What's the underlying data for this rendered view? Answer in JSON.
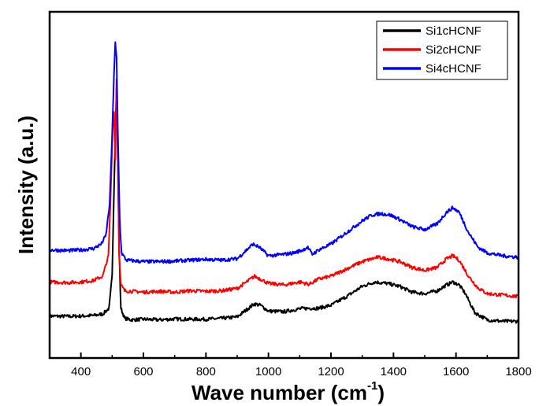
{
  "chart_data": {
    "type": "line",
    "title": "",
    "xlabel": "Wave number (cm",
    "xlabel_sup": "-1",
    "xlabel_close": ")",
    "ylabel": "Intensity (a.u.)",
    "xlim": [
      300,
      1800
    ],
    "x_ticks": [
      400,
      600,
      800,
      1000,
      1200,
      1400,
      1600,
      1800
    ],
    "y_ticks_labeled": false,
    "y_scale": "arbitrary units",
    "ylim": [
      0,
      1
    ],
    "grid": false,
    "legend_position": "top-right",
    "series": [
      {
        "name": "Si1cHCNF",
        "color": "#000000",
        "points": [
          [
            300,
            0.063
          ],
          [
            360,
            0.062
          ],
          [
            400,
            0.063
          ],
          [
            440,
            0.065
          ],
          [
            470,
            0.07
          ],
          [
            490,
            0.09
          ],
          [
            500,
            0.2
          ],
          [
            506,
            0.5
          ],
          [
            510,
            0.68
          ],
          [
            514,
            0.85
          ],
          [
            518,
            0.6
          ],
          [
            522,
            0.3
          ],
          [
            528,
            0.09
          ],
          [
            540,
            0.055
          ],
          [
            560,
            0.05
          ],
          [
            600,
            0.052
          ],
          [
            650,
            0.05
          ],
          [
            700,
            0.053
          ],
          [
            750,
            0.052
          ],
          [
            800,
            0.052
          ],
          [
            850,
            0.055
          ],
          [
            900,
            0.06
          ],
          [
            930,
            0.085
          ],
          [
            955,
            0.105
          ],
          [
            975,
            0.1
          ],
          [
            1000,
            0.08
          ],
          [
            1050,
            0.078
          ],
          [
            1100,
            0.088
          ],
          [
            1130,
            0.09
          ],
          [
            1160,
            0.09
          ],
          [
            1200,
            0.1
          ],
          [
            1250,
            0.13
          ],
          [
            1300,
            0.165
          ],
          [
            1340,
            0.18
          ],
          [
            1380,
            0.175
          ],
          [
            1420,
            0.165
          ],
          [
            1460,
            0.145
          ],
          [
            1500,
            0.14
          ],
          [
            1540,
            0.15
          ],
          [
            1570,
            0.17
          ],
          [
            1590,
            0.18
          ],
          [
            1610,
            0.17
          ],
          [
            1630,
            0.14
          ],
          [
            1660,
            0.075
          ],
          [
            1700,
            0.05
          ],
          [
            1750,
            0.045
          ],
          [
            1800,
            0.045
          ]
        ]
      },
      {
        "name": "Si2cHCNF",
        "color": "#ff0000",
        "points": [
          [
            300,
            0.18
          ],
          [
            360,
            0.178
          ],
          [
            400,
            0.18
          ],
          [
            440,
            0.185
          ],
          [
            470,
            0.2
          ],
          [
            488,
            0.27
          ],
          [
            496,
            0.5
          ],
          [
            502,
            0.72
          ],
          [
            506,
            0.77
          ],
          [
            510,
            0.6
          ],
          [
            514,
            0.88
          ],
          [
            518,
            0.63
          ],
          [
            522,
            0.28
          ],
          [
            528,
            0.17
          ],
          [
            540,
            0.15
          ],
          [
            600,
            0.145
          ],
          [
            650,
            0.148
          ],
          [
            700,
            0.145
          ],
          [
            750,
            0.15
          ],
          [
            800,
            0.148
          ],
          [
            850,
            0.15
          ],
          [
            900,
            0.158
          ],
          [
            930,
            0.18
          ],
          [
            955,
            0.2
          ],
          [
            975,
            0.19
          ],
          [
            1000,
            0.175
          ],
          [
            1050,
            0.17
          ],
          [
            1100,
            0.18
          ],
          [
            1130,
            0.172
          ],
          [
            1160,
            0.19
          ],
          [
            1200,
            0.2
          ],
          [
            1250,
            0.225
          ],
          [
            1300,
            0.25
          ],
          [
            1350,
            0.265
          ],
          [
            1380,
            0.26
          ],
          [
            1420,
            0.25
          ],
          [
            1460,
            0.23
          ],
          [
            1500,
            0.22
          ],
          [
            1540,
            0.23
          ],
          [
            1570,
            0.26
          ],
          [
            1590,
            0.27
          ],
          [
            1610,
            0.255
          ],
          [
            1640,
            0.2
          ],
          [
            1670,
            0.16
          ],
          [
            1700,
            0.14
          ],
          [
            1750,
            0.135
          ],
          [
            1800,
            0.13
          ]
        ]
      },
      {
        "name": "Si4cHCNF",
        "color": "#0000ff",
        "points": [
          [
            300,
            0.29
          ],
          [
            360,
            0.288
          ],
          [
            400,
            0.29
          ],
          [
            440,
            0.295
          ],
          [
            465,
            0.31
          ],
          [
            480,
            0.34
          ],
          [
            492,
            0.45
          ],
          [
            500,
            0.68
          ],
          [
            506,
            0.9
          ],
          [
            510,
            1.0
          ],
          [
            514,
            0.95
          ],
          [
            518,
            0.7
          ],
          [
            524,
            0.4
          ],
          [
            530,
            0.28
          ],
          [
            545,
            0.255
          ],
          [
            600,
            0.25
          ],
          [
            650,
            0.25
          ],
          [
            700,
            0.252
          ],
          [
            750,
            0.255
          ],
          [
            800,
            0.258
          ],
          [
            850,
            0.255
          ],
          [
            900,
            0.26
          ],
          [
            930,
            0.29
          ],
          [
            950,
            0.31
          ],
          [
            970,
            0.3
          ],
          [
            1000,
            0.27
          ],
          [
            1050,
            0.275
          ],
          [
            1080,
            0.28
          ],
          [
            1110,
            0.29
          ],
          [
            1125,
            0.3
          ],
          [
            1140,
            0.275
          ],
          [
            1160,
            0.29
          ],
          [
            1200,
            0.31
          ],
          [
            1250,
            0.35
          ],
          [
            1300,
            0.39
          ],
          [
            1330,
            0.41
          ],
          [
            1360,
            0.415
          ],
          [
            1390,
            0.41
          ],
          [
            1420,
            0.395
          ],
          [
            1460,
            0.37
          ],
          [
            1500,
            0.36
          ],
          [
            1540,
            0.38
          ],
          [
            1570,
            0.42
          ],
          [
            1590,
            0.435
          ],
          [
            1610,
            0.42
          ],
          [
            1640,
            0.35
          ],
          [
            1670,
            0.3
          ],
          [
            1700,
            0.28
          ],
          [
            1750,
            0.27
          ],
          [
            1800,
            0.265
          ]
        ]
      }
    ]
  }
}
